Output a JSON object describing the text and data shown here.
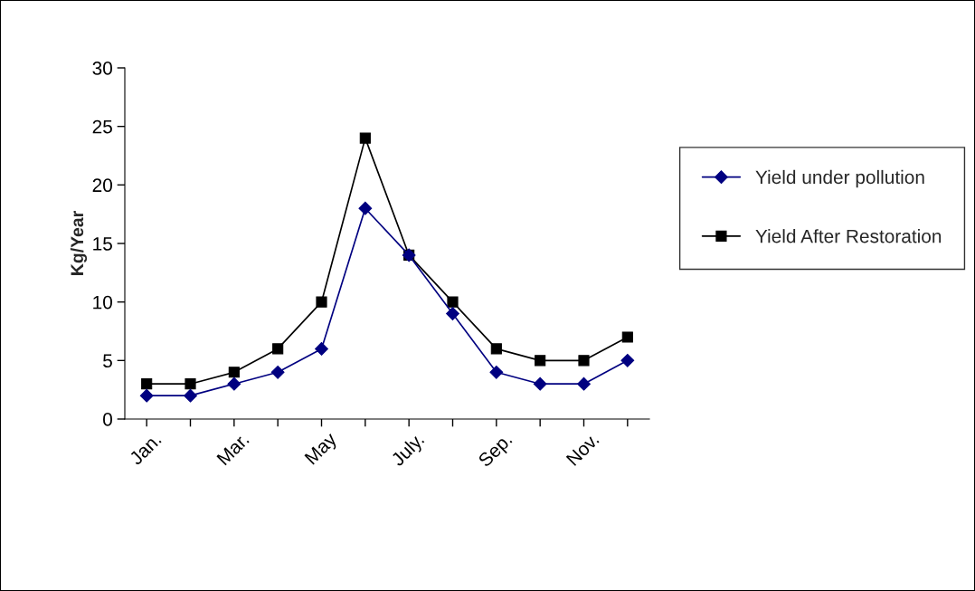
{
  "chart_data": {
    "type": "line",
    "ylabel": "Kg/Year",
    "categories": [
      "Jan.",
      null,
      "Mar.",
      null,
      "May",
      null,
      "July.",
      null,
      "Sep.",
      null,
      "Nov.",
      null
    ],
    "series": [
      {
        "name": "Yield under pollution",
        "color": "#000080",
        "marker": "diamond",
        "values": [
          2,
          2,
          3,
          4,
          6,
          18,
          14,
          9,
          4,
          3,
          3,
          5
        ]
      },
      {
        "name": "Yield After Restoration",
        "color": "#000000",
        "marker": "square",
        "values": [
          3,
          3,
          4,
          6,
          10,
          24,
          14,
          10,
          6,
          5,
          5,
          7
        ]
      }
    ],
    "ylim": [
      0,
      30
    ],
    "yticks": [
      0,
      5,
      10,
      15,
      20,
      25,
      30
    ],
    "grid": false,
    "legend": "right",
    "line_style": "solid"
  }
}
